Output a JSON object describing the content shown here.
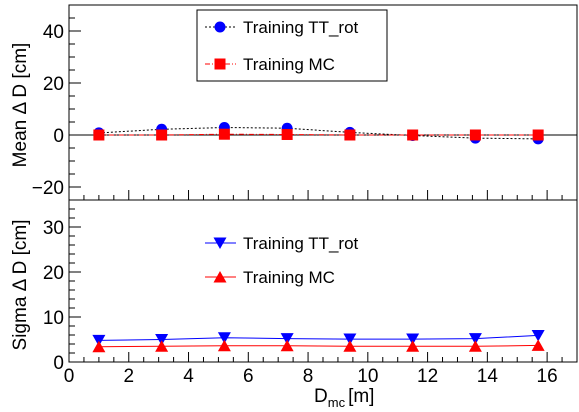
{
  "chart_data": [
    {
      "type": "scatter",
      "ylabel": "Mean Δ D [cm]",
      "xlim": [
        0,
        17
      ],
      "ylim": [
        -25,
        50
      ],
      "yticks": [
        "−20",
        "0",
        "20",
        "40"
      ],
      "zero_line": true,
      "legend": "top-center",
      "series": [
        {
          "name": "Training TT_rot",
          "marker": "circle",
          "line": "dotted",
          "color": "#0000ff",
          "x": [
            1.0,
            3.1,
            5.2,
            7.3,
            9.4,
            11.5,
            13.6,
            15.7
          ],
          "y": [
            0.8,
            2.2,
            2.9,
            2.6,
            1.0,
            -0.2,
            -1.2,
            -1.5
          ]
        },
        {
          "name": "Training MC",
          "marker": "square",
          "line": "dash-dot",
          "color": "#ff0000",
          "x": [
            1.0,
            3.1,
            5.2,
            7.3,
            9.4,
            11.5,
            13.6,
            15.7
          ],
          "y": [
            0.0,
            0.0,
            0.3,
            0.2,
            0.0,
            0.0,
            0.0,
            0.0
          ]
        }
      ]
    },
    {
      "type": "line",
      "xlabel": "D",
      "xlabel_sub": "mc",
      "xlabel_unit": "[m]",
      "ylabel": "Sigma Δ D [cm]",
      "xlim": [
        0,
        17
      ],
      "ylim": [
        0,
        36
      ],
      "xticks": [
        "0",
        "2",
        "4",
        "6",
        "8",
        "10",
        "12",
        "14",
        "16"
      ],
      "yticks": [
        "0",
        "10",
        "20",
        "30"
      ],
      "legend": "top-center",
      "series": [
        {
          "name": "Training TT_rot",
          "marker": "triangle-down",
          "line": "solid",
          "color": "#0000ff",
          "x": [
            1.0,
            3.1,
            5.2,
            7.3,
            9.4,
            11.5,
            13.6,
            15.7
          ],
          "y": [
            4.8,
            5.0,
            5.4,
            5.2,
            5.1,
            5.1,
            5.2,
            5.9
          ]
        },
        {
          "name": "Training MC",
          "marker": "triangle-up",
          "line": "solid",
          "color": "#ff0000",
          "x": [
            1.0,
            3.1,
            5.2,
            7.3,
            9.4,
            11.5,
            13.6,
            15.7
          ],
          "y": [
            3.4,
            3.5,
            3.6,
            3.6,
            3.5,
            3.5,
            3.5,
            3.7
          ]
        }
      ]
    }
  ]
}
